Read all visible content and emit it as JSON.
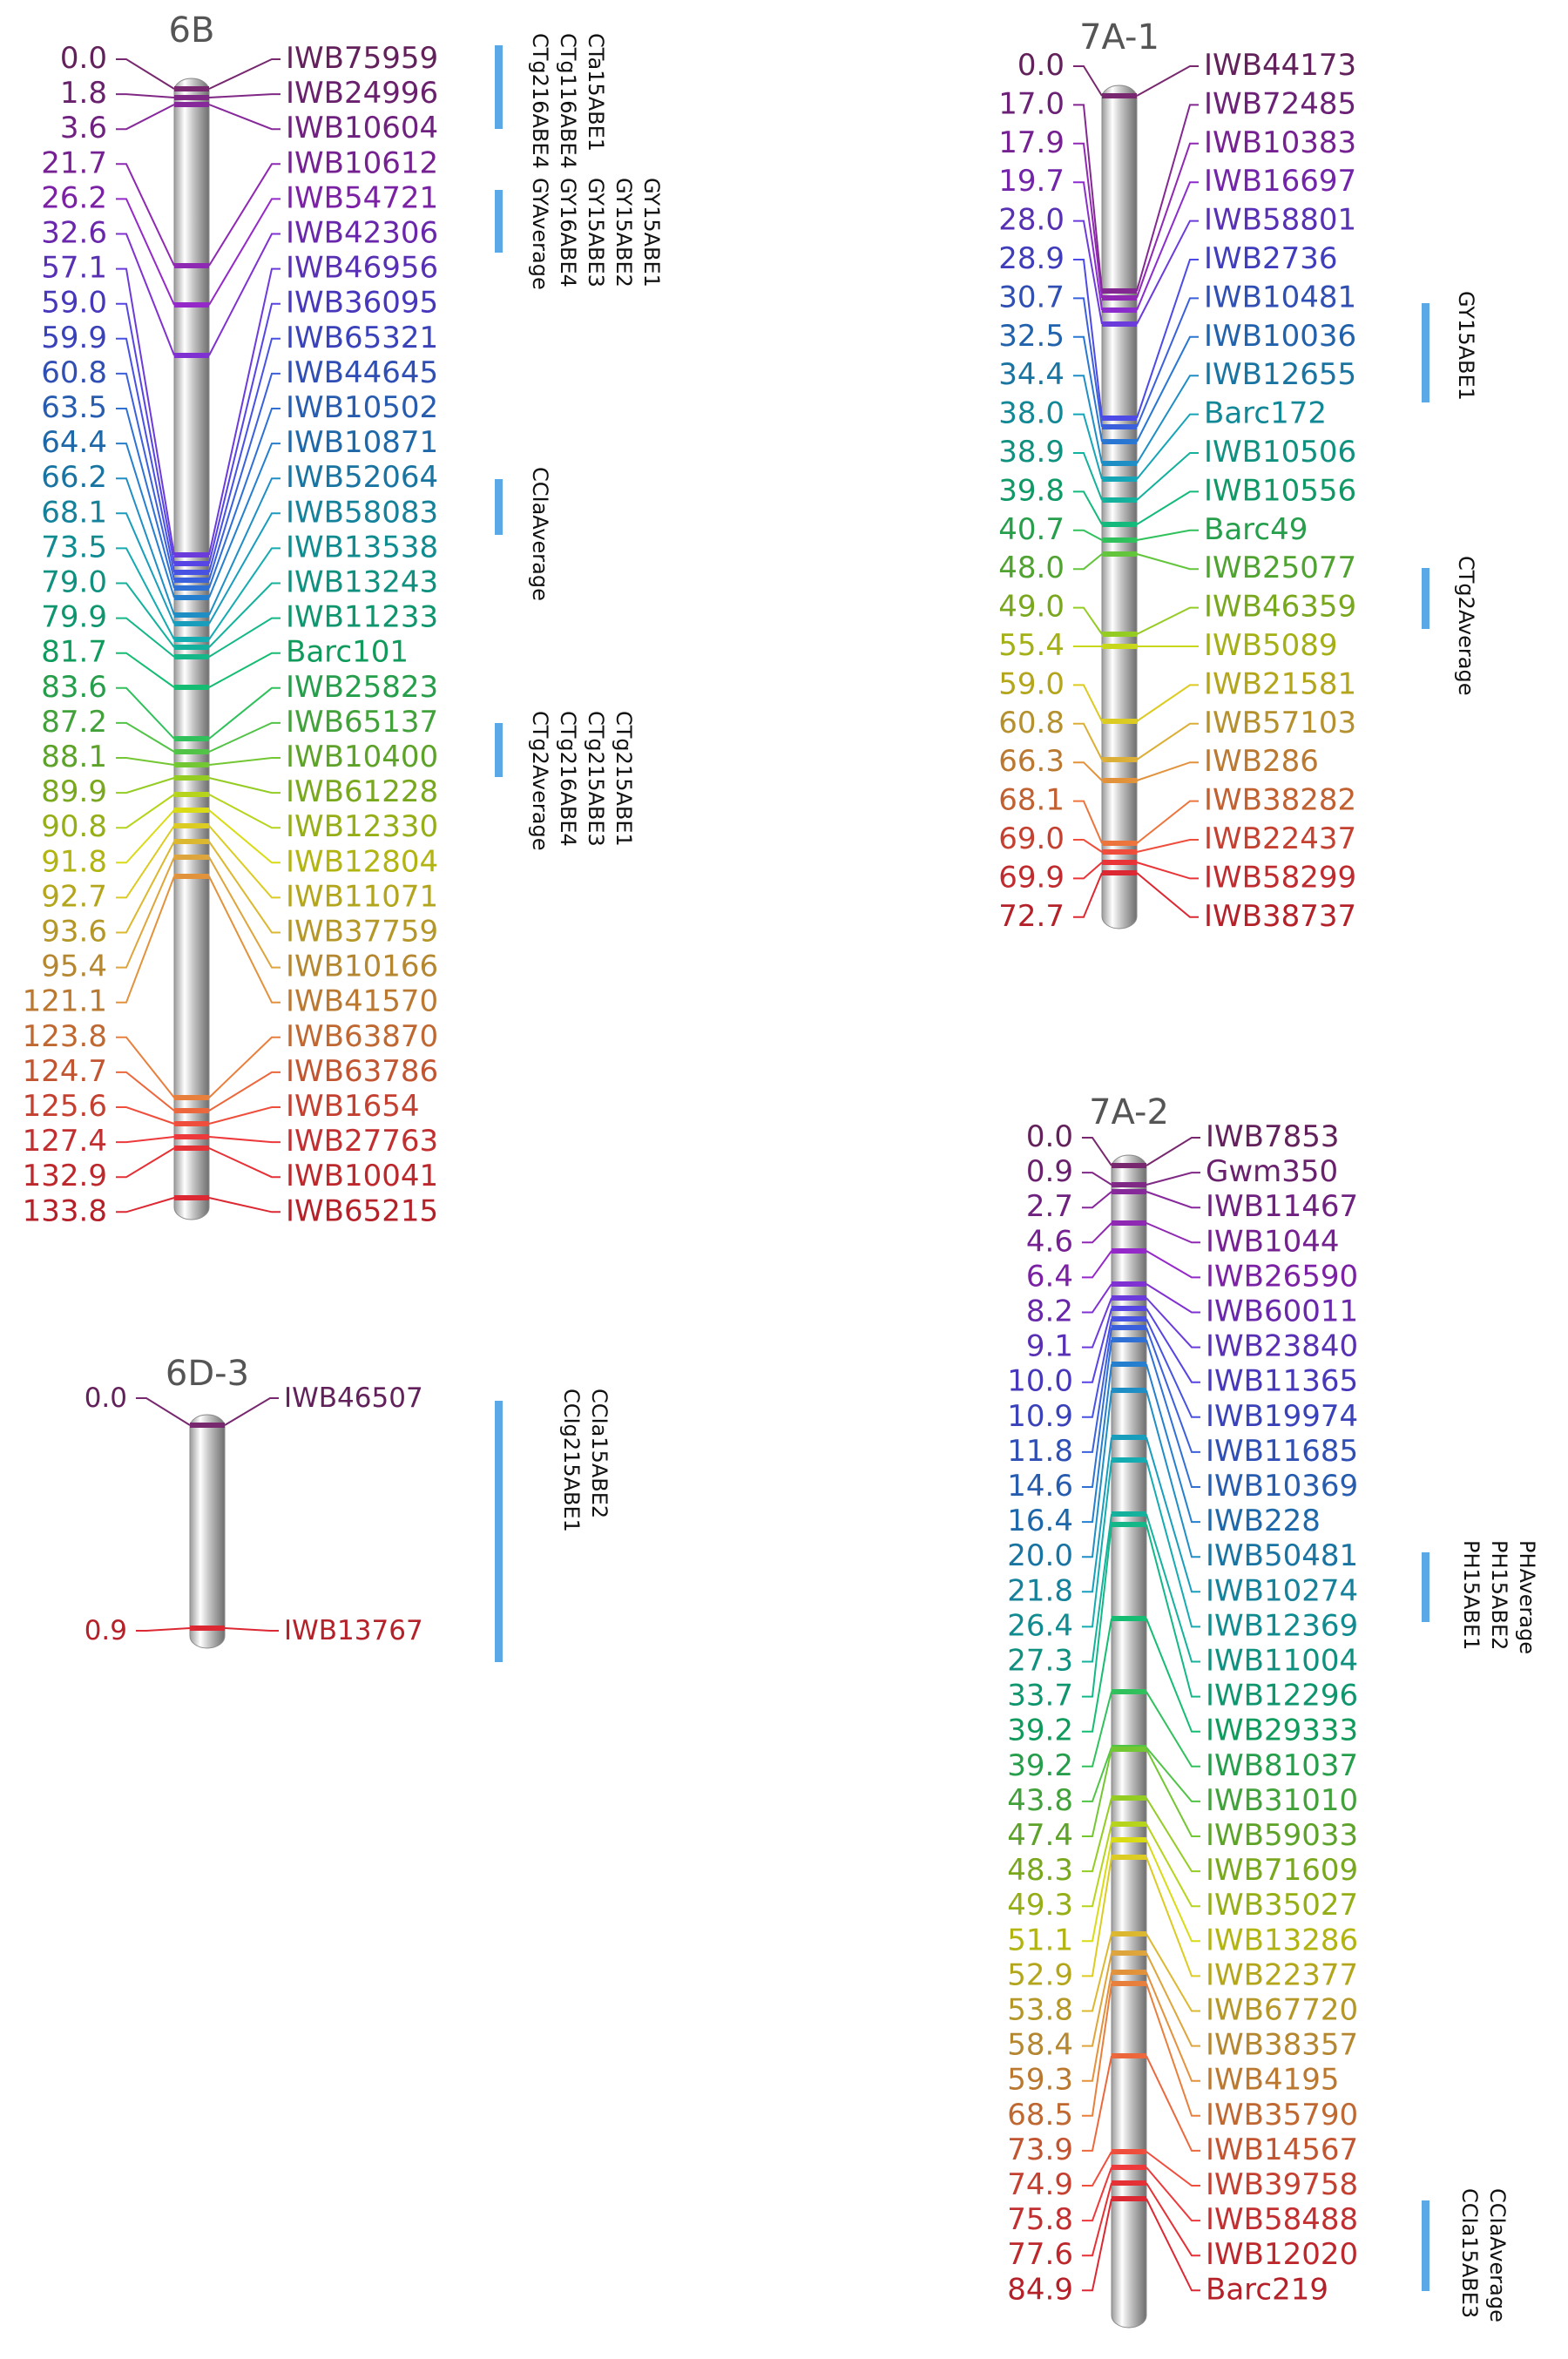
{
  "chromosomes": [
    {
      "name": "6B",
      "positions": [
        "0.0",
        "1.8",
        "3.6",
        "21.7",
        "26.2",
        "32.6",
        "57.1",
        "59.0",
        "59.9",
        "60.8",
        "63.5",
        "64.4",
        "66.2",
        "68.1",
        "73.5",
        "79.0",
        "79.9",
        "81.7",
        "83.6",
        "87.2",
        "88.1",
        "89.9",
        "90.8",
        "91.8",
        "92.7",
        "93.6",
        "95.4",
        "121.1",
        "123.8",
        "124.7",
        "125.6",
        "127.4",
        "132.9",
        "133.8"
      ],
      "markers": [
        "IWB75959",
        "IWB24996",
        "IWB10604",
        "IWB10612",
        "IWB54721",
        "IWB42306",
        "IWB46956",
        "IWB36095",
        "IWB65321",
        "IWB44645",
        "IWB10502",
        "IWB10871",
        "IWB52064",
        "IWB58083",
        "IWB13538",
        "IWB13243",
        "IWB11233",
        "Barc101",
        "IWB25823",
        "IWB65137",
        "IWB10400",
        "IWB61228",
        "IWB12330",
        "IWB12804",
        "IWB11071",
        "IWB37759",
        "IWB10166",
        "IWB41570",
        "IWB63870",
        "IWB63786",
        "IWB1654",
        "IWB27763",
        "IWB10041",
        "IWB65215"
      ],
      "qtls": [
        {
          "labels": [
            "CTg216ABE4",
            "CTg116ABE4",
            "CTa15ABE1"
          ]
        },
        {
          "labels": [
            "GYAverage",
            "GY16ABE4",
            "GY15ABE3",
            "GY15ABE2",
            "GY15ABE1"
          ]
        },
        {
          "labels": [
            "CCIaAverage"
          ]
        },
        {
          "labels": [
            "CTg2Average",
            "CTg216ABE4",
            "CTg215ABE3",
            "CTg215ABE1"
          ]
        }
      ]
    },
    {
      "name": "6D-3",
      "positions": [
        "0.0",
        "0.9"
      ],
      "markers": [
        "IWB46507",
        "IWB13767"
      ],
      "qtls": [
        {
          "labels": [
            "CCIg215ABE1",
            "CCIa15ABE2"
          ]
        }
      ]
    },
    {
      "name": "7A-1",
      "positions": [
        "0.0",
        "17.0",
        "17.9",
        "19.7",
        "28.0",
        "28.9",
        "30.7",
        "32.5",
        "34.4",
        "38.0",
        "38.9",
        "39.8",
        "40.7",
        "48.0",
        "49.0",
        "55.4",
        "59.0",
        "60.8",
        "66.3",
        "68.1",
        "69.0",
        "69.9",
        "72.7"
      ],
      "markers": [
        "IWB44173",
        "IWB72485",
        "IWB10383",
        "IWB16697",
        "IWB58801",
        "IWB2736",
        "IWB10481",
        "IWB10036",
        "IWB12655",
        "Barc172",
        "IWB10506",
        "IWB10556",
        "Barc49",
        "IWB25077",
        "IWB46359",
        "IWB5089",
        "IWB21581",
        "IWB57103",
        "IWB286",
        "IWB38282",
        "IWB22437",
        "IWB58299",
        "IWB38737"
      ],
      "qtls": [
        {
          "labels": [
            "GY15ABE1"
          ]
        },
        {
          "labels": [
            "CTg2Average"
          ]
        }
      ]
    },
    {
      "name": "7A-2",
      "positions": [
        "0.0",
        "0.9",
        "2.7",
        "4.6",
        "6.4",
        "8.2",
        "9.1",
        "10.0",
        "10.9",
        "11.8",
        "14.6",
        "16.4",
        "20.0",
        "21.8",
        "26.4",
        "27.3",
        "33.7",
        "39.2",
        "39.2",
        "43.8",
        "47.4",
        "48.3",
        "49.3",
        "51.1",
        "52.9",
        "53.8",
        "58.4",
        "59.3",
        "68.5",
        "73.9",
        "74.9",
        "75.8",
        "77.6",
        "84.9"
      ],
      "markers": [
        "IWB7853",
        "Gwm350",
        "IWB11467",
        "IWB1044",
        "IWB26590",
        "IWB60011",
        "IWB23840",
        "IWB11365",
        "IWB19974",
        "IWB11685",
        "IWB10369",
        "IWB228",
        "IWB50481",
        "IWB10274",
        "IWB12369",
        "IWB11004",
        "IWB12296",
        "IWB29333",
        "IWB81037",
        "IWB31010",
        "IWB59033",
        "IWB71609",
        "IWB35027",
        "IWB13286",
        "IWB22377",
        "IWB67720",
        "IWB38357",
        "IWB4195",
        "IWB35790",
        "IWB14567",
        "IWB39758",
        "IWB58488",
        "IWB12020",
        "Barc219"
      ],
      "qtls": [
        {
          "labels": [
            "PHAverage",
            "PH15ABE2",
            "PH15ABE1"
          ]
        },
        {
          "labels": [
            "CCIaAverage",
            "CCIa15ABE3"
          ]
        }
      ]
    }
  ]
}
